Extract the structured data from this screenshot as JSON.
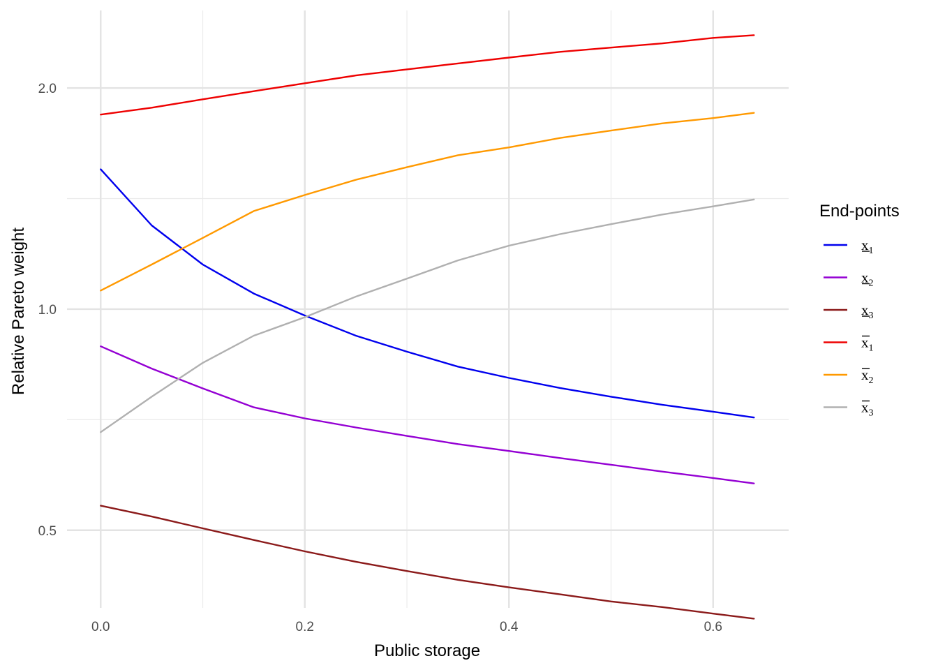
{
  "chart_data": {
    "type": "line",
    "title": "",
    "xlabel": "Public storage",
    "ylabel": "Relative Pareto weight",
    "y_scale": "log",
    "xlim": [
      -0.033,
      0.674
    ],
    "ylim": [
      0.392,
      2.55
    ],
    "x_ticks": [
      0.0,
      0.2,
      0.4,
      0.6
    ],
    "x_tick_labels": [
      "0.0",
      "0.2",
      "0.4",
      "0.6"
    ],
    "y_ticks": [
      0.5,
      1.0,
      2.0
    ],
    "y_tick_labels": [
      "0.5",
      "1.0",
      "2.0"
    ],
    "x_minor_ticks": [
      0.1,
      0.3,
      0.5
    ],
    "y_minor_ticks": [
      0.7071,
      1.4142
    ],
    "grid": true,
    "legend": {
      "title": "End-points",
      "position": "right"
    },
    "x": [
      0.0,
      0.05,
      0.1,
      0.15,
      0.2,
      0.25,
      0.3,
      0.35,
      0.4,
      0.45,
      0.5,
      0.55,
      0.6,
      0.64
    ],
    "series": [
      {
        "label_base": "x",
        "label_sub": "1",
        "bound": "lower",
        "color": "#0000ee",
        "values": [
          1.55,
          1.3,
          1.15,
          1.05,
          0.98,
          0.92,
          0.875,
          0.835,
          0.806,
          0.781,
          0.76,
          0.741,
          0.725,
          0.712
        ]
      },
      {
        "label_base": "x",
        "label_sub": "2",
        "bound": "lower",
        "color": "#9400d3",
        "values": [
          0.89,
          0.83,
          0.78,
          0.735,
          0.71,
          0.69,
          0.672,
          0.655,
          0.641,
          0.627,
          0.614,
          0.601,
          0.589,
          0.579
        ]
      },
      {
        "label_base": "x",
        "label_sub": "3",
        "bound": "lower",
        "color": "#8b1a1a",
        "values": [
          0.54,
          0.522,
          0.503,
          0.485,
          0.468,
          0.453,
          0.44,
          0.428,
          0.418,
          0.409,
          0.4,
          0.393,
          0.385,
          0.379
        ]
      },
      {
        "label_base": "x",
        "label_sub": "1",
        "bound": "upper",
        "color": "#ee0000",
        "values": [
          1.84,
          1.88,
          1.93,
          1.98,
          2.03,
          2.08,
          2.12,
          2.16,
          2.2,
          2.24,
          2.27,
          2.3,
          2.34,
          2.36
        ]
      },
      {
        "label_base": "x",
        "label_sub": "2",
        "bound": "upper",
        "color": "#ff9900",
        "values": [
          1.06,
          1.15,
          1.25,
          1.36,
          1.43,
          1.5,
          1.56,
          1.62,
          1.66,
          1.71,
          1.75,
          1.79,
          1.82,
          1.85
        ]
      },
      {
        "label_base": "x",
        "label_sub": "3",
        "bound": "upper",
        "color": "#b0b0b0",
        "values": [
          0.68,
          0.76,
          0.845,
          0.92,
          0.975,
          1.04,
          1.1,
          1.165,
          1.22,
          1.265,
          1.305,
          1.345,
          1.38,
          1.41
        ]
      }
    ]
  }
}
